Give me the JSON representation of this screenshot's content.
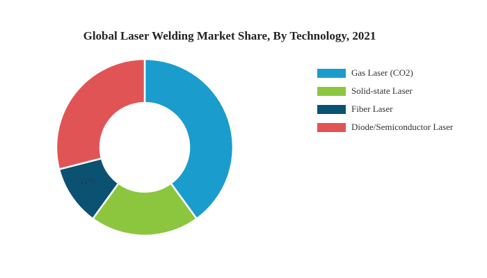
{
  "chart_data": {
    "type": "pie",
    "title": "Global Laser Welding Market Share, By Technology, 2021",
    "categories": [
      "Gas Laser (CO2)",
      "Solid-state Laser",
      "Fiber Laser",
      "Diode/Semiconductor Laser"
    ],
    "values": [
      40,
      20,
      11,
      29
    ],
    "unit": "%",
    "colors": [
      "#1a9ccc",
      "#8cc63f",
      "#0b5172",
      "#e15456"
    ],
    "data_labels": [
      "",
      "",
      "11%",
      ""
    ],
    "donut": true,
    "legend_position": "right"
  }
}
